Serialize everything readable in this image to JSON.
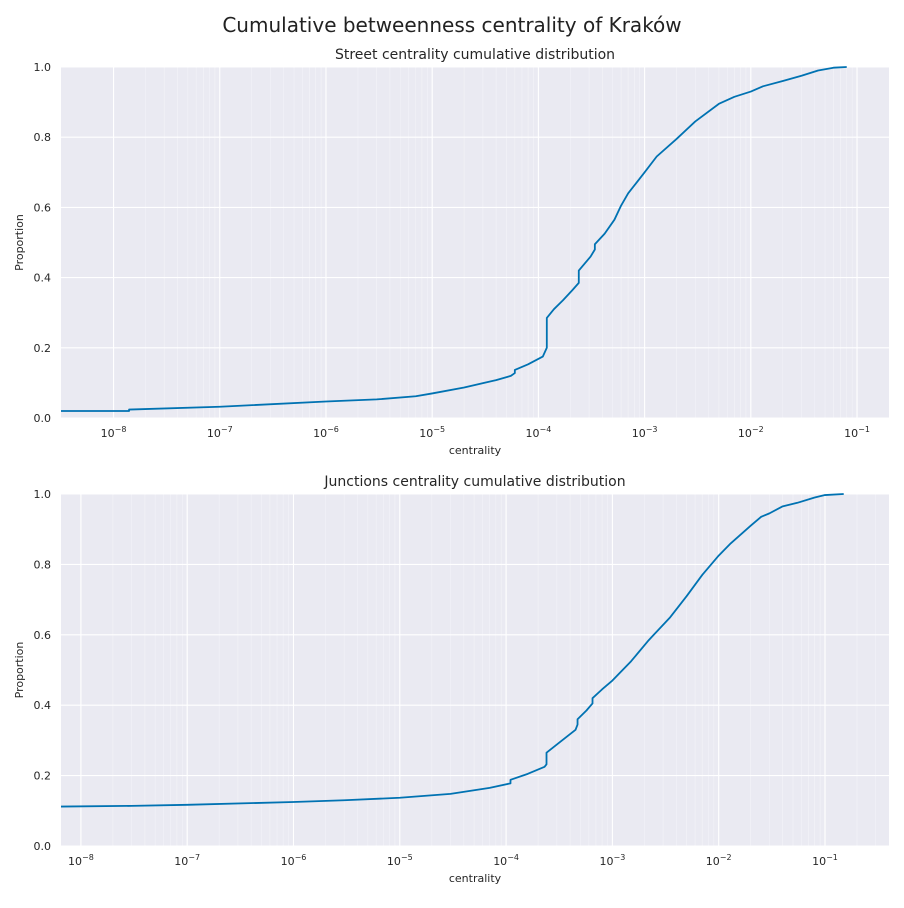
{
  "figure": {
    "title": "Cumulative betweenness centrality of Kraków"
  },
  "colors": {
    "line": "#0072b2",
    "panel_bg": "#eaeaf2",
    "grid": "#ffffff",
    "text": "#262626"
  },
  "chart_data": [
    {
      "type": "line",
      "title": "Street centrality cumulative distribution",
      "xlabel": "centrality",
      "ylabel": "Proportion",
      "xscale": "log",
      "xlim": [
        3.2e-09,
        0.2
      ],
      "ylim": [
        0,
        1
      ],
      "grid": true,
      "xticks": [
        1e-08,
        1e-07,
        1e-06,
        1e-05,
        0.0001,
        0.001,
        0.01,
        0.1
      ],
      "xtick_labels": [
        {
          "base": "10",
          "exp": "−8"
        },
        {
          "base": "10",
          "exp": "−7"
        },
        {
          "base": "10",
          "exp": "−6"
        },
        {
          "base": "10",
          "exp": "−5"
        },
        {
          "base": "10",
          "exp": "−4"
        },
        {
          "base": "10",
          "exp": "−3"
        },
        {
          "base": "10",
          "exp": "−2"
        },
        {
          "base": "10",
          "exp": "−1"
        }
      ],
      "yticks": [
        "0.0",
        "0.2",
        "0.4",
        "0.6",
        "0.8",
        "1.0"
      ],
      "series": [
        {
          "x": [
            3.2e-09,
            1.4e-08,
            1.4e-08,
            1e-07,
            1e-06,
            3e-06,
            7e-06,
            1e-05,
            2e-05,
            4e-05,
            5.5e-05,
            6e-05,
            6e-05,
            8e-05,
            0.00011,
            0.00012,
            0.00012,
            0.00014,
            0.00017,
            0.00021,
            0.00024,
            0.00024,
            0.00031,
            0.00034,
            0.00034,
            0.00042,
            0.00052,
            0.0006,
            0.0007,
            0.001,
            0.0013,
            0.002,
            0.003,
            0.005,
            0.007,
            0.01,
            0.013,
            0.02,
            0.03,
            0.043,
            0.06,
            0.08
          ],
          "y": [
            0.02,
            0.02,
            0.024,
            0.032,
            0.047,
            0.053,
            0.062,
            0.07,
            0.087,
            0.108,
            0.12,
            0.128,
            0.137,
            0.153,
            0.175,
            0.2,
            0.285,
            0.31,
            0.335,
            0.365,
            0.385,
            0.42,
            0.46,
            0.48,
            0.495,
            0.525,
            0.565,
            0.605,
            0.64,
            0.7,
            0.745,
            0.795,
            0.845,
            0.895,
            0.915,
            0.93,
            0.945,
            0.96,
            0.975,
            0.99,
            0.998,
            1.0
          ]
        }
      ]
    },
    {
      "type": "line",
      "title": "Junctions centrality cumulative distribution",
      "xlabel": "centrality",
      "ylabel": "Proportion",
      "xscale": "log",
      "xlim": [
        6.5e-09,
        0.4
      ],
      "ylim": [
        0,
        1
      ],
      "grid": true,
      "xticks": [
        1e-08,
        1e-07,
        1e-06,
        1e-05,
        0.0001,
        0.001,
        0.01,
        0.1
      ],
      "xtick_labels": [
        {
          "base": "10",
          "exp": "−8"
        },
        {
          "base": "10",
          "exp": "−7"
        },
        {
          "base": "10",
          "exp": "−6"
        },
        {
          "base": "10",
          "exp": "−5"
        },
        {
          "base": "10",
          "exp": "−4"
        },
        {
          "base": "10",
          "exp": "−3"
        },
        {
          "base": "10",
          "exp": "−2"
        },
        {
          "base": "10",
          "exp": "−1"
        }
      ],
      "yticks": [
        "0.0",
        "0.2",
        "0.4",
        "0.6",
        "0.8",
        "1.0"
      ],
      "series": [
        {
          "x": [
            6.5e-09,
            3e-08,
            1e-07,
            1e-06,
            3e-06,
            1e-05,
            3e-05,
            7e-05,
            0.00011,
            0.00011,
            0.00016,
            0.00023,
            0.00024,
            0.00024,
            0.00032,
            0.00045,
            0.00047,
            0.00047,
            0.00057,
            0.00065,
            0.00065,
            0.0008,
            0.001,
            0.0015,
            0.0022,
            0.0035,
            0.005,
            0.007,
            0.01,
            0.013,
            0.02,
            0.025,
            0.03,
            0.04,
            0.055,
            0.08,
            0.1,
            0.15
          ],
          "y": [
            0.112,
            0.114,
            0.117,
            0.125,
            0.13,
            0.137,
            0.148,
            0.165,
            0.178,
            0.188,
            0.205,
            0.225,
            0.232,
            0.265,
            0.295,
            0.33,
            0.345,
            0.36,
            0.385,
            0.405,
            0.42,
            0.445,
            0.47,
            0.525,
            0.585,
            0.65,
            0.71,
            0.77,
            0.825,
            0.86,
            0.91,
            0.935,
            0.945,
            0.965,
            0.975,
            0.99,
            0.997,
            1.0
          ]
        }
      ]
    }
  ]
}
